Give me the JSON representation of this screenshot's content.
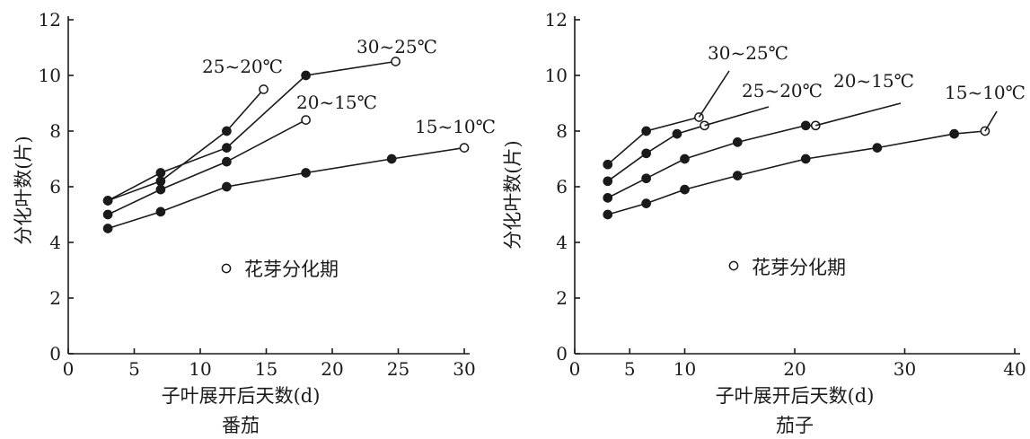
{
  "chart_data": [
    {
      "type": "line",
      "title": "番茄",
      "xlabel": "子叶展开后天数(d)",
      "ylabel": "分化叶数(片)",
      "xlim": [
        0,
        30
      ],
      "ylim": [
        0,
        12
      ],
      "xticks": [
        0,
        5,
        10,
        15,
        20,
        25,
        30
      ],
      "yticks": [
        0,
        2,
        4,
        6,
        8,
        10,
        12
      ],
      "legend": {
        "marker": "open-circle",
        "label": "花芽分化期",
        "placement": "center"
      },
      "series": [
        {
          "name": "25~20℃",
          "points": [
            [
              3,
              5.5
            ],
            [
              7,
              6.2
            ],
            [
              12,
              8.0
            ],
            [
              14.8,
              9.5
            ]
          ],
          "open_last": true
        },
        {
          "name": "30~25℃",
          "points": [
            [
              3,
              5.5
            ],
            [
              7,
              6.5
            ],
            [
              12,
              7.4
            ],
            [
              18,
              10.0
            ],
            [
              24.8,
              10.5
            ]
          ],
          "open_last": true
        },
        {
          "name": "20~15℃",
          "points": [
            [
              3,
              5.0
            ],
            [
              7,
              5.9
            ],
            [
              12,
              6.9
            ],
            [
              18,
              8.4
            ]
          ],
          "open_last": true
        },
        {
          "name": "15~10℃",
          "points": [
            [
              3,
              4.5
            ],
            [
              7,
              5.1
            ],
            [
              12,
              6.0
            ],
            [
              18,
              6.5
            ],
            [
              24.5,
              7.0
            ],
            [
              30,
              7.4
            ]
          ],
          "open_last": true
        }
      ]
    },
    {
      "type": "line",
      "title": "茄子",
      "xlabel": "子叶展开后天数(d)",
      "ylabel": "分化叶数(片)",
      "xlim": [
        0,
        40
      ],
      "ylim": [
        0,
        12
      ],
      "xticks": [
        0,
        5,
        10,
        20,
        30,
        40
      ],
      "yticks": [
        0,
        2,
        4,
        6,
        8,
        10,
        12
      ],
      "legend": {
        "marker": "open-circle",
        "label": "花芽分化期",
        "placement": "center"
      },
      "series": [
        {
          "name": "30~25℃",
          "points": [
            [
              3,
              6.8
            ],
            [
              6.5,
              8.0
            ],
            [
              11.3,
              8.5
            ]
          ],
          "open_last": true
        },
        {
          "name": "25~20℃",
          "points": [
            [
              3,
              6.2
            ],
            [
              6.5,
              7.2
            ],
            [
              9.3,
              7.9
            ],
            [
              11.8,
              8.2
            ]
          ],
          "open_last": true
        },
        {
          "name": "20~15℃",
          "points": [
            [
              3,
              5.6
            ],
            [
              6.5,
              6.3
            ],
            [
              10,
              7.0
            ],
            [
              14.8,
              7.6
            ],
            [
              21,
              8.2
            ],
            [
              21.9,
              8.2
            ]
          ],
          "open_last": true
        },
        {
          "name": "15~10℃",
          "points": [
            [
              3,
              5.0
            ],
            [
              6.5,
              5.4
            ],
            [
              10,
              5.9
            ],
            [
              14.8,
              6.4
            ],
            [
              21,
              7.0
            ],
            [
              27.5,
              7.4
            ],
            [
              34.5,
              7.9
            ],
            [
              37.3,
              8.0
            ]
          ],
          "open_last": true
        }
      ]
    }
  ]
}
